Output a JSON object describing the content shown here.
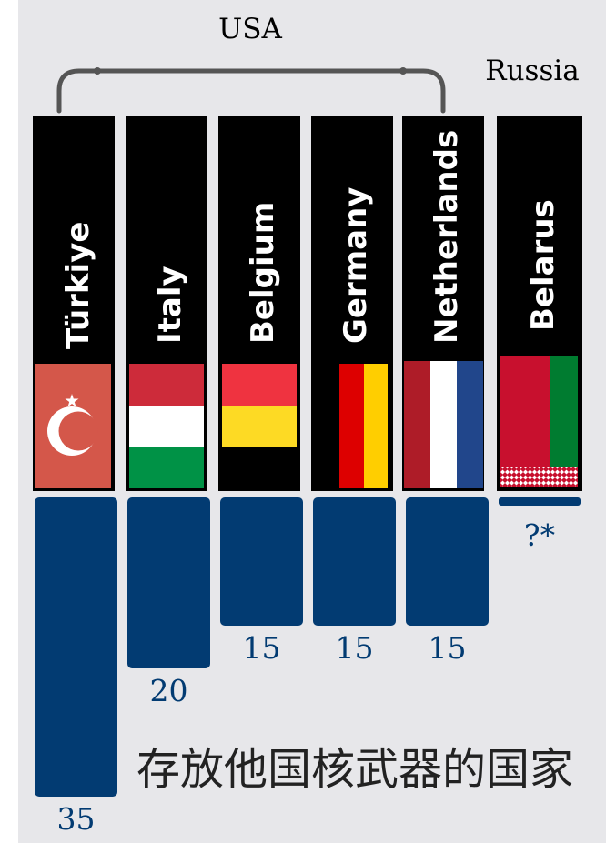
{
  "colors": {
    "background": "#e7e7ea",
    "bar": "#023b72",
    "value_text": "#023b72",
    "label_box": "#000000",
    "label_text": "#ffffff",
    "bracket": "#555555",
    "title_text": "#222222"
  },
  "chart_data": {
    "type": "bar",
    "title": "存放他国核武器的国家",
    "groups": [
      {
        "label": "USA",
        "members": [
          "Türkiye",
          "Italy",
          "Belgium",
          "Germany",
          "Netherlands"
        ]
      },
      {
        "label": "Russia",
        "members": [
          "Belarus"
        ]
      }
    ],
    "categories": [
      "Türkiye",
      "Italy",
      "Belgium",
      "Germany",
      "Netherlands",
      "Belarus"
    ],
    "values": [
      35,
      20,
      15,
      15,
      15,
      null
    ],
    "value_labels": [
      "35",
      "20",
      "15",
      "15",
      "15",
      "?*"
    ],
    "flags": [
      "turkey-flag",
      "italy-flag",
      "belgium-flag",
      "germany-flag",
      "netherlands-flag",
      "belarus-flag"
    ]
  }
}
